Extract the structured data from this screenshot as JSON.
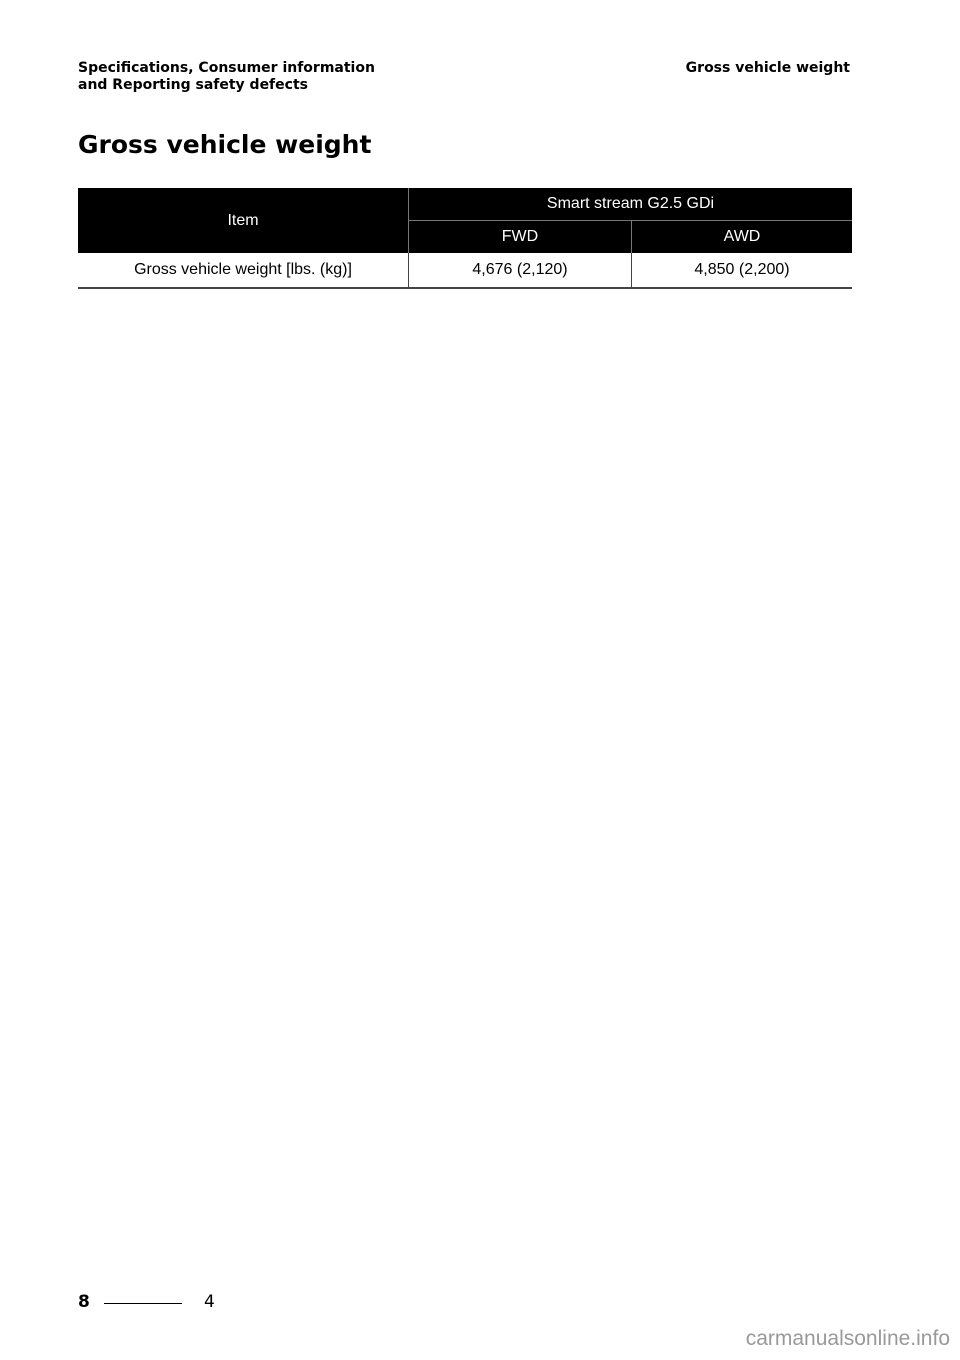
{
  "header": {
    "section_line1": "Specifications, Consumer information",
    "section_line2": "and Reporting safety defects",
    "topic": "Gross vehicle weight"
  },
  "title": "Gross vehicle weight",
  "table": {
    "item_header": "Item",
    "engine_header": "Smart stream G2.5 GDi",
    "sub_headers": [
      "FWD",
      "AWD"
    ],
    "rows": [
      {
        "item": "Gross vehicle weight [lbs. (kg)]",
        "fwd": "4,676 (2,120)",
        "awd": "4,850 (2,200)"
      }
    ]
  },
  "footer": {
    "chapter": "8",
    "page": "4",
    "watermark": "carmanualsonline.info"
  }
}
